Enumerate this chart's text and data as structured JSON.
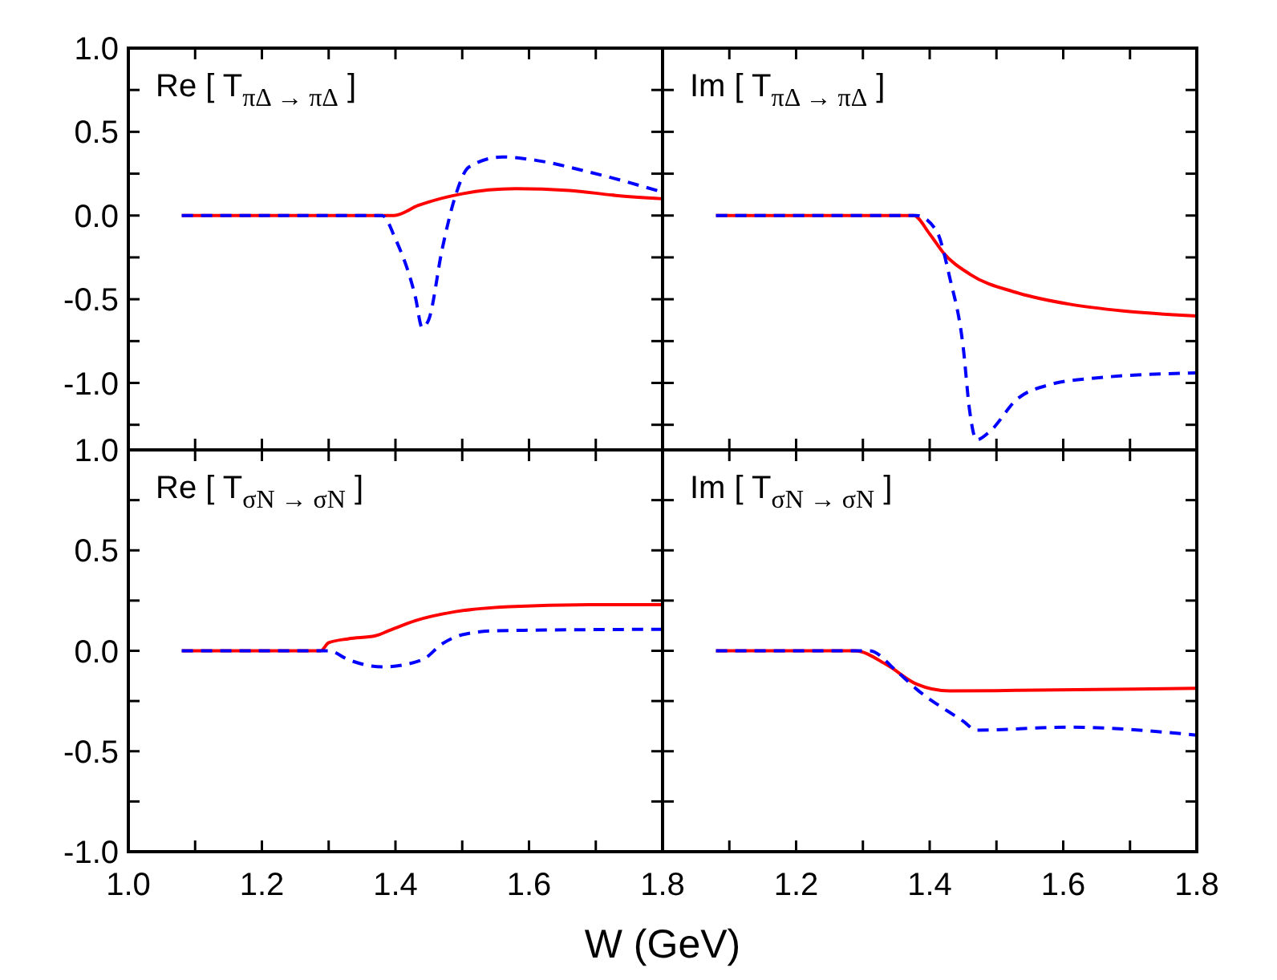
{
  "chart_data": [
    {
      "type": "line",
      "title": "Re [ T$_{πΔ → πΔ}$ ]",
      "xlim": [
        1.0,
        1.8
      ],
      "ylim": [
        -1.4,
        1.0
      ],
      "tick_labels": "y",
      "xticks": [
        {
          "value": 1.0,
          "label": null
        },
        {
          "value": 1.1,
          "label": null
        },
        {
          "value": 1.2,
          "label": null
        },
        {
          "value": 1.3,
          "label": null
        },
        {
          "value": 1.4,
          "label": null
        },
        {
          "value": 1.5,
          "label": null
        },
        {
          "value": 1.6,
          "label": null
        },
        {
          "value": 1.7,
          "label": null
        },
        {
          "value": 1.8,
          "label": null
        }
      ],
      "yticks": [
        {
          "value": -1.25,
          "label": null
        },
        {
          "value": -1.0,
          "label": "-1.0"
        },
        {
          "value": -0.75,
          "label": null
        },
        {
          "value": -0.5,
          "label": "-0.5"
        },
        {
          "value": -0.25,
          "label": null
        },
        {
          "value": 0,
          "label": "0.0"
        },
        {
          "value": 0.25,
          "label": null
        },
        {
          "value": 0.5,
          "label": "0.5"
        },
        {
          "value": 0.75,
          "label": null
        },
        {
          "value": 1.0,
          "label": "1.0"
        }
      ],
      "series": [
        {
          "color": "#ff0000",
          "line_style": "solid",
          "x": [
            1.08,
            1.2,
            1.3,
            1.398,
            1.434,
            1.5,
            1.58,
            1.66,
            1.73,
            1.8
          ],
          "values": [
            0,
            0,
            0,
            0,
            0.06,
            0.13,
            0.16,
            0.15,
            0.12,
            0.1
          ]
        },
        {
          "color": "#0000ff",
          "line_style": "dashed",
          "x": [
            1.08,
            1.2,
            1.3,
            1.38,
            1.4,
            1.43,
            1.44,
            1.45,
            1.47,
            1.49,
            1.51,
            1.56,
            1.61,
            1.69,
            1.8
          ],
          "values": [
            0,
            0,
            0,
            0,
            -0.14,
            -0.49,
            -0.67,
            -0.62,
            -0.2,
            0.12,
            0.29,
            0.35,
            0.33,
            0.26,
            0.14
          ]
        }
      ]
    },
    {
      "type": "line",
      "title": "Im [ T$_{πΔ → πΔ}$ ]",
      "xlim": [
        1.0,
        1.8
      ],
      "ylim": [
        -1.4,
        1.0
      ],
      "tick_labels": false,
      "xticks": [
        {
          "value": 1.0,
          "label": null
        },
        {
          "value": 1.1,
          "label": null
        },
        {
          "value": 1.2,
          "label": null
        },
        {
          "value": 1.3,
          "label": null
        },
        {
          "value": 1.4,
          "label": null
        },
        {
          "value": 1.5,
          "label": null
        },
        {
          "value": 1.6,
          "label": null
        },
        {
          "value": 1.7,
          "label": null
        },
        {
          "value": 1.8,
          "label": null
        }
      ],
      "yticks": [
        {
          "value": -1.25,
          "label": null
        },
        {
          "value": -1.0,
          "label": null
        },
        {
          "value": -0.75,
          "label": null
        },
        {
          "value": -0.5,
          "label": null
        },
        {
          "value": -0.25,
          "label": null
        },
        {
          "value": 0,
          "label": null
        },
        {
          "value": 0.25,
          "label": null
        },
        {
          "value": 0.5,
          "label": null
        },
        {
          "value": 0.75,
          "label": null
        },
        {
          "value": 1.0,
          "label": null
        }
      ],
      "series": [
        {
          "color": "#ff0000",
          "line_style": "solid",
          "x": [
            1.08,
            1.2,
            1.3,
            1.376,
            1.4,
            1.42,
            1.46,
            1.53,
            1.61,
            1.69,
            1.8
          ],
          "values": [
            0,
            0,
            0,
            0,
            -0.11,
            -0.22,
            -0.35,
            -0.46,
            -0.53,
            -0.57,
            -0.6
          ]
        },
        {
          "color": "#0000ff",
          "line_style": "dashed",
          "x": [
            1.08,
            1.2,
            1.3,
            1.38,
            1.41,
            1.43,
            1.45,
            1.46,
            1.47,
            1.49,
            1.53,
            1.58,
            1.65,
            1.8
          ],
          "values": [
            0,
            0,
            0,
            0,
            -0.09,
            -0.37,
            -0.78,
            -1.17,
            -1.34,
            -1.29,
            -1.1,
            -1.01,
            -0.97,
            -0.94
          ]
        }
      ]
    },
    {
      "type": "line",
      "title": "Re [ T$_{σN → σN}$ ]",
      "xlabel": "W (GeV)",
      "xlim": [
        1.0,
        1.8
      ],
      "ylim": [
        -1.0,
        1.0
      ],
      "xticks": [
        {
          "value": 1.0,
          "label": "1.0"
        },
        {
          "value": 1.1,
          "label": null
        },
        {
          "value": 1.2,
          "label": "1.2"
        },
        {
          "value": 1.3,
          "label": null
        },
        {
          "value": 1.4,
          "label": "1.4"
        },
        {
          "value": 1.5,
          "label": null
        },
        {
          "value": 1.6,
          "label": "1.6"
        },
        {
          "value": 1.7,
          "label": null
        },
        {
          "value": 1.8,
          "label": "1.8"
        }
      ],
      "yticks": [
        {
          "value": -1.0,
          "label": "-1.0"
        },
        {
          "value": -0.75,
          "label": null
        },
        {
          "value": -0.5,
          "label": "-0.5"
        },
        {
          "value": -0.25,
          "label": null
        },
        {
          "value": 0,
          "label": "0.0"
        },
        {
          "value": 0.25,
          "label": null
        },
        {
          "value": 0.5,
          "label": "0.5"
        },
        {
          "value": 0.75,
          "label": null
        },
        {
          "value": 1.0,
          "label": "1.0"
        }
      ],
      "series": [
        {
          "color": "#ff0000",
          "line_style": "solid",
          "x": [
            1.08,
            1.2,
            1.288,
            1.3,
            1.33,
            1.37,
            1.39,
            1.43,
            1.49,
            1.57,
            1.69,
            1.8
          ],
          "values": [
            0,
            0,
            0,
            0.04,
            0.06,
            0.075,
            0.1,
            0.15,
            0.195,
            0.22,
            0.23,
            0.23
          ]
        },
        {
          "color": "#0000ff",
          "line_style": "dashed",
          "x": [
            1.08,
            1.2,
            1.3,
            1.33,
            1.38,
            1.44,
            1.47,
            1.5,
            1.55,
            1.8
          ],
          "values": [
            0,
            0,
            0,
            -0.045,
            -0.08,
            -0.045,
            0.035,
            0.08,
            0.1,
            0.107
          ]
        }
      ]
    },
    {
      "type": "line",
      "title": "Im [ T$_{σN → σN}$ ]",
      "xlim": [
        1.0,
        1.8
      ],
      "ylim": [
        -1.0,
        1.0
      ],
      "tick_labels": "x",
      "xticks": [
        {
          "value": 1.0,
          "label": null
        },
        {
          "value": 1.1,
          "label": null
        },
        {
          "value": 1.2,
          "label": "1.2"
        },
        {
          "value": 1.3,
          "label": null
        },
        {
          "value": 1.4,
          "label": "1.4"
        },
        {
          "value": 1.5,
          "label": null
        },
        {
          "value": 1.6,
          "label": "1.6"
        },
        {
          "value": 1.7,
          "label": null
        },
        {
          "value": 1.8,
          "label": "1.8"
        }
      ],
      "yticks": [
        {
          "value": -1.0,
          "label": null
        },
        {
          "value": -0.75,
          "label": null
        },
        {
          "value": -0.5,
          "label": null
        },
        {
          "value": -0.25,
          "label": null
        },
        {
          "value": 0,
          "label": null
        },
        {
          "value": 0.25,
          "label": null
        },
        {
          "value": 0.5,
          "label": null
        },
        {
          "value": 0.75,
          "label": null
        },
        {
          "value": 1.0,
          "label": null
        }
      ],
      "series": [
        {
          "color": "#ff0000",
          "line_style": "solid",
          "x": [
            1.08,
            1.2,
            1.288,
            1.336,
            1.38,
            1.43,
            1.53,
            1.8
          ],
          "values": [
            0,
            0,
            0,
            -0.07,
            -0.165,
            -0.2,
            -0.197,
            -0.187
          ]
        },
        {
          "color": "#0000ff",
          "line_style": "dashed",
          "x": [
            1.08,
            1.2,
            1.31,
            1.35,
            1.38,
            1.45,
            1.47,
            1.61,
            1.8
          ],
          "values": [
            0,
            0,
            0,
            -0.1,
            -0.19,
            -0.35,
            -0.395,
            -0.38,
            -0.42
          ]
        }
      ]
    }
  ]
}
